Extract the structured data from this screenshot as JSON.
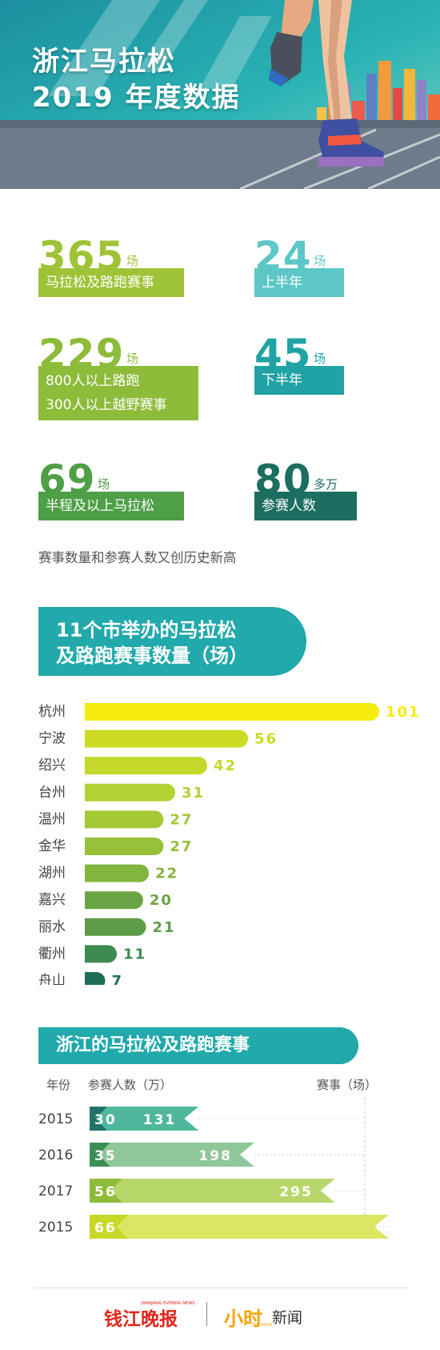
{
  "hero": {
    "title_line1": "浙江马拉松",
    "title_line2": "2019 年度数据"
  },
  "stats": [
    {
      "number": "365",
      "unit": "场",
      "labels": [
        "马拉松及路跑赛事"
      ],
      "color": "#9fc336"
    },
    {
      "number": "24",
      "unit": "场",
      "labels": [
        "上半年"
      ],
      "color": "#5cc7c6"
    },
    {
      "number": "229",
      "unit": "场",
      "labels": [
        "800人以上路跑",
        "300人以上越野赛事"
      ],
      "color": "#8dbc3b"
    },
    {
      "number": "45",
      "unit": "场",
      "labels": [
        "下半年"
      ],
      "color": "#21a3a5"
    },
    {
      "number": "69",
      "unit": "场",
      "labels": [
        "半程及以上马拉松"
      ],
      "color": "#4e9f46"
    },
    {
      "number": "80",
      "unit": "多万",
      "labels": [
        "参赛人数"
      ],
      "color": "#1b6e60"
    }
  ],
  "caption": "赛事数量和参赛人数又创历史新高",
  "section1": {
    "title_line1": "11个市举办的马拉松",
    "title_line2": "及路跑赛事数量（场）"
  },
  "section2": {
    "title": "浙江的马拉松及路跑赛事",
    "col_year": "年份",
    "col_people": "参赛人数（万）",
    "col_events": "赛事（场）"
  },
  "chart_data": [
    {
      "type": "bar",
      "orientation": "horizontal",
      "title": "11个市举办的马拉松及路跑赛事数量（场）",
      "categories": [
        "杭州",
        "宁波",
        "绍兴",
        "台州",
        "温州",
        "金华",
        "湖州",
        "嘉兴",
        "丽水",
        "衢州",
        "舟山"
      ],
      "values": [
        101,
        56,
        42,
        31,
        27,
        27,
        22,
        20,
        21,
        11,
        7
      ],
      "colors": [
        "#f6ec0d",
        "#cbdc23",
        "#c4d92b",
        "#b2d132",
        "#a4c935",
        "#97c139",
        "#82b53e",
        "#6ba444",
        "#5e9c48",
        "#3f8a52",
        "#216e58"
      ]
    },
    {
      "type": "bar",
      "title": "浙江的马拉松及路跑赛事",
      "categories": [
        "2015",
        "2016",
        "2017",
        "2015"
      ],
      "series": [
        {
          "name": "参赛人数（万）",
          "values": [
            30,
            35,
            56,
            66
          ]
        },
        {
          "name": "赛事（场）",
          "values": [
            131,
            198,
            295,
            null
          ]
        }
      ],
      "colors": {
        "people": [
          "#20736a",
          "#3c8f53",
          "#8fbb3a",
          "#c8d827"
        ],
        "events": [
          "#4fb79c",
          "#8fc79b",
          "#b7d76a",
          "#dde663"
        ]
      }
    }
  ],
  "footer": {
    "brand1": "钱江晚报",
    "brand1_sub": "QIANJIANG EVENING NEWS",
    "brand2": "小时",
    "brand2_b": "新闻",
    "brand2_sub": "THE HOUR"
  }
}
